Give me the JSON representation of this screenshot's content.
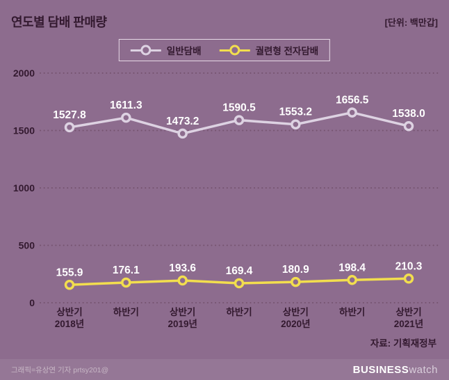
{
  "page": {
    "title": "연도별 담배 판매량",
    "unit_label": "[단위: 백만갑]",
    "source_label": "자료: 기획재정부",
    "credit": "그래픽=유상연 기자 prtsy201@",
    "brand": {
      "bold": "BUSINESS",
      "light": "watch"
    }
  },
  "colors": {
    "background": "#8d6c8e",
    "dark_text": "#33192f",
    "grid": "#75536f",
    "series_general": "#ddd2e2",
    "series_heated": "#f2de4e",
    "data_label": "#ffffff",
    "footer_text": "#c7b7c5"
  },
  "chart_data": {
    "type": "line",
    "title": "연도별 담배 판매량",
    "unit": "백만갑",
    "categories": [
      [
        "상반기",
        "2018년"
      ],
      [
        "하반기"
      ],
      [
        "상반기",
        "2019년"
      ],
      [
        "하반기"
      ],
      [
        "상반기",
        "2020년"
      ],
      [
        "하반기"
      ],
      [
        "상반기",
        "2021년"
      ]
    ],
    "series": [
      {
        "name": "일반담배",
        "color_key": "series_general",
        "values": [
          1527.8,
          1611.3,
          1473.2,
          1590.5,
          1553.2,
          1656.5,
          1538.0
        ]
      },
      {
        "name": "궐련형 전자담배",
        "color_key": "series_heated",
        "values": [
          155.9,
          176.1,
          193.6,
          169.4,
          180.9,
          198.4,
          210.3
        ]
      }
    ],
    "ylim": [
      0,
      2000
    ],
    "yticks": [
      0,
      500,
      1000,
      1500,
      2000
    ],
    "grid": "dotted",
    "legend_position": "top",
    "source": "기획재정부"
  }
}
